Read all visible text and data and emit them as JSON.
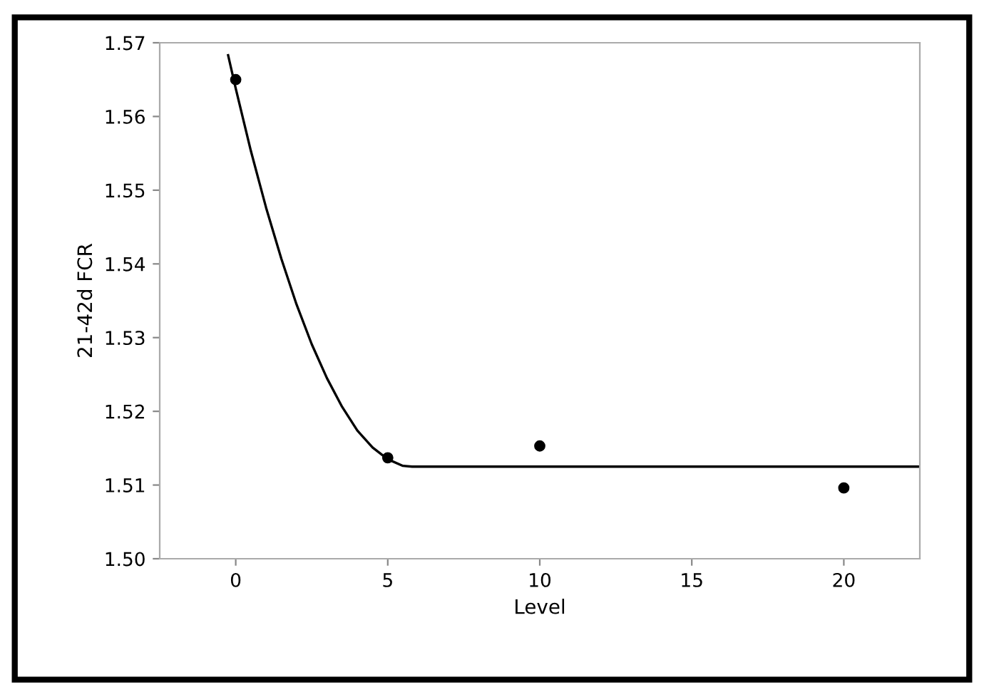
{
  "chart_data": {
    "type": "scatter",
    "xlabel": "Level",
    "ylabel": "21-42d FCR",
    "series": [
      {
        "color": "#000000",
        "x": [
          0,
          5,
          10,
          20
        ],
        "values": [
          1.565,
          1.5137,
          1.5153,
          1.5096
        ],
        "marker": "circle"
      },
      {
        "type": "line",
        "color": "#000000",
        "x": [
          -0.25,
          0,
          0.5,
          1,
          1.5,
          2,
          2.5,
          3,
          3.5,
          4,
          4.5,
          5,
          5.5,
          5.8,
          22.5
        ],
        "values": [
          1.5683,
          1.5638,
          1.5553,
          1.5476,
          1.5407,
          1.5345,
          1.5291,
          1.5245,
          1.5206,
          1.5174,
          1.5151,
          1.5135,
          1.5126,
          1.5125,
          1.5125
        ],
        "marker": "none",
        "line_style": "solid"
      }
    ],
    "xlim": [
      -2.5,
      22.5
    ],
    "xticks": [
      0,
      5,
      10,
      15,
      20
    ],
    "ylim": [
      1.5,
      1.57
    ],
    "yticks": [
      {
        "value": 1.5,
        "label": "1.50"
      },
      {
        "value": 1.51,
        "label": "1.51"
      },
      {
        "value": 1.52,
        "label": "1.52"
      },
      {
        "value": 1.53,
        "label": "1.53"
      },
      {
        "value": 1.54,
        "label": "1.54"
      },
      {
        "value": 1.55,
        "label": "1.55"
      },
      {
        "value": 1.56,
        "label": "1.56"
      },
      {
        "value": 1.57,
        "label": "1.57"
      }
    ],
    "grid": false,
    "legend": false
  }
}
